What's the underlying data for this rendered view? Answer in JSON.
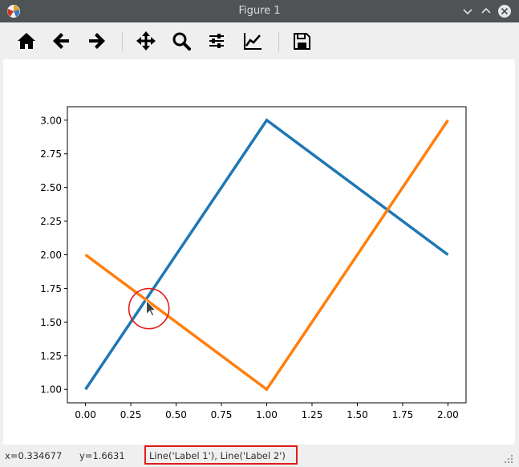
{
  "window": {
    "title": "Figure 1"
  },
  "toolbar": {
    "buttons": [
      {
        "name": "home-button",
        "icon": "home-icon"
      },
      {
        "name": "back-button",
        "icon": "arrow-left-icon"
      },
      {
        "name": "forward-button",
        "icon": "arrow-right-icon"
      },
      {
        "name": "pan-button",
        "icon": "move-icon"
      },
      {
        "name": "zoom-button",
        "icon": "search-icon"
      },
      {
        "name": "configure-subplots-button",
        "icon": "sliders-icon"
      },
      {
        "name": "edit-axis-button",
        "icon": "line-chart-icon"
      },
      {
        "name": "save-button",
        "icon": "save-icon"
      }
    ]
  },
  "status": {
    "x": "x=0.334677",
    "y": "y=1.6631",
    "artists": "Line('Label 1'), Line('Label 2')"
  },
  "colors": {
    "series1": "#1f77b4",
    "series2": "#ff7f0e",
    "highlight": "#e31b1b"
  },
  "chart_data": {
    "type": "line",
    "title": "",
    "xlabel": "",
    "ylabel": "",
    "xlim": [
      -0.1,
      2.1
    ],
    "ylim": [
      0.9,
      3.1
    ],
    "x_ticks": [
      "0.00",
      "0.25",
      "0.50",
      "0.75",
      "1.00",
      "1.25",
      "1.50",
      "1.75",
      "2.00"
    ],
    "y_ticks": [
      "1.00",
      "1.25",
      "1.50",
      "1.75",
      "2.00",
      "2.25",
      "2.50",
      "2.75",
      "3.00"
    ],
    "grid": false,
    "series": [
      {
        "name": "Label 1",
        "color": "#1f77b4",
        "x": [
          0,
          1,
          2
        ],
        "y": [
          1,
          3,
          2
        ]
      },
      {
        "name": "Label 2",
        "color": "#ff7f0e",
        "x": [
          0,
          1,
          2
        ],
        "y": [
          2,
          1,
          3
        ]
      }
    ],
    "annotation": {
      "x": 0.35,
      "y": 1.6,
      "shape": "circle"
    }
  }
}
